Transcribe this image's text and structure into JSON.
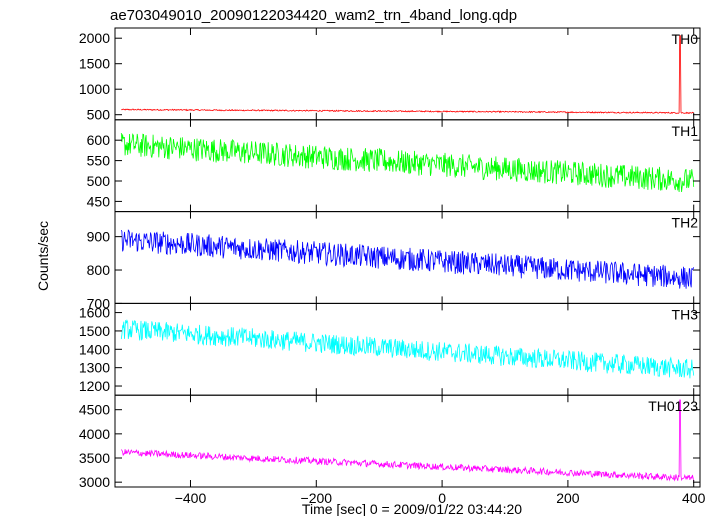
{
  "title": "ae703049010_20090122034420_wam2_trn_4band_long.qdp",
  "chart_data": {
    "type": "line",
    "title": "ae703049010_20090122034420_wam2_trn_4band_long.qdp",
    "xlabel": "Time [sec] 0 = 2009/01/22 03:44:20",
    "ylabel": "Counts/sec",
    "xlim": [
      -520,
      410
    ],
    "x_ticks": [
      -400,
      -200,
      0,
      200,
      400
    ],
    "x_tick_labels": [
      "−400",
      "−200",
      "0",
      "200",
      "400"
    ],
    "grid": false,
    "panels": [
      {
        "name": "TH0",
        "color": "#ff0000",
        "ylim": [
          400,
          2200
        ],
        "y_ticks": [
          500,
          1000,
          1500,
          2000
        ],
        "series": [
          {
            "name": "TH0",
            "x_range": [
              -510,
              400
            ],
            "start_level": 600,
            "end_level": 535,
            "noise_amplitude": 12,
            "spikes": [
              {
                "x": 378,
                "y": 2050
              }
            ]
          }
        ]
      },
      {
        "name": "TH1",
        "color": "#00ff00",
        "ylim": [
          425,
          650
        ],
        "y_ticks": [
          450,
          500,
          550,
          600
        ],
        "series": [
          {
            "name": "TH1",
            "x_range": [
              -510,
              400
            ],
            "start_level": 590,
            "end_level": 500,
            "noise_amplitude": 30,
            "spikes": []
          }
        ]
      },
      {
        "name": "TH2",
        "color": "#0000ff",
        "ylim": [
          700,
          975
        ],
        "y_ticks": [
          700,
          800,
          900
        ],
        "series": [
          {
            "name": "TH2",
            "x_range": [
              -510,
              400
            ],
            "start_level": 890,
            "end_level": 775,
            "noise_amplitude": 35,
            "spikes": []
          }
        ]
      },
      {
        "name": "TH3",
        "color": "#00ffff",
        "ylim": [
          1150,
          1650
        ],
        "y_ticks": [
          1200,
          1300,
          1400,
          1500,
          1600
        ],
        "series": [
          {
            "name": "TH3",
            "x_range": [
              -510,
              400
            ],
            "start_level": 1510,
            "end_level": 1290,
            "noise_amplitude": 55,
            "spikes": []
          }
        ]
      },
      {
        "name": "TH0123",
        "color": "#ff00ff",
        "ylim": [
          2900,
          4800
        ],
        "y_ticks": [
          3000,
          3500,
          4000,
          4500
        ],
        "series": [
          {
            "name": "TH0123",
            "x_range": [
              -510,
              400
            ],
            "start_level": 3620,
            "end_level": 3080,
            "noise_amplitude": 70,
            "spikes": [
              {
                "x": 378,
                "y": 4700
              }
            ]
          }
        ]
      }
    ]
  }
}
